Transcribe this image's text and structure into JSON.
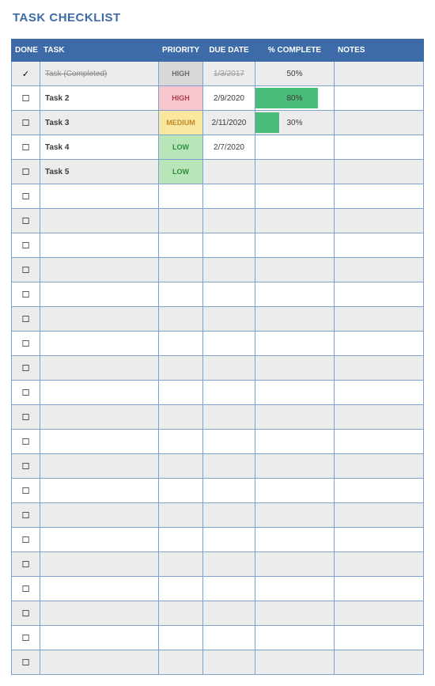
{
  "title": "TASK CHECKLIST",
  "columns": {
    "done": "DONE",
    "task": "TASK",
    "priority": "PRIORITY",
    "dueDate": "DUE DATE",
    "pctComplete": "% COMPLETE",
    "notes": "NOTES"
  },
  "priorityColors": {
    "HIGH": {
      "bg": "#f7c7cf",
      "fg": "#b23b4a"
    },
    "MEDIUM": {
      "bg": "#f9e7a0",
      "fg": "#c08a2a"
    },
    "LOW": {
      "bg": "#b8e6b8",
      "fg": "#2f8a3f"
    }
  },
  "pctBarColor": "#4bbd7a",
  "rows": [
    {
      "done": "✓",
      "completed": true,
      "task": "Task (Completed)",
      "priority": "HIGH",
      "priorityNeutral": true,
      "dueDate": "1/3/2017",
      "pct": 50,
      "showBar": false,
      "notes": ""
    },
    {
      "done": "☐",
      "completed": false,
      "task": "Task 2",
      "priority": "HIGH",
      "priorityNeutral": false,
      "dueDate": "2/9/2020",
      "pct": 80,
      "showBar": true,
      "notes": ""
    },
    {
      "done": "☐",
      "completed": false,
      "task": "Task 3",
      "priority": "MEDIUM",
      "priorityNeutral": false,
      "dueDate": "2/11/2020",
      "pct": 30,
      "showBar": true,
      "notes": ""
    },
    {
      "done": "☐",
      "completed": false,
      "task": "Task 4",
      "priority": "LOW",
      "priorityNeutral": false,
      "dueDate": "2/7/2020",
      "pct": null,
      "showBar": false,
      "notes": ""
    },
    {
      "done": "☐",
      "completed": false,
      "task": "Task 5",
      "priority": "LOW",
      "priorityNeutral": false,
      "dueDate": "",
      "pct": null,
      "showBar": false,
      "notes": ""
    },
    {
      "done": "☐"
    },
    {
      "done": "☐"
    },
    {
      "done": "☐"
    },
    {
      "done": "☐"
    },
    {
      "done": "☐"
    },
    {
      "done": "☐"
    },
    {
      "done": "☐"
    },
    {
      "done": "☐"
    },
    {
      "done": "☐"
    },
    {
      "done": "☐"
    },
    {
      "done": "☐"
    },
    {
      "done": "☐"
    },
    {
      "done": "☐"
    },
    {
      "done": "☐"
    },
    {
      "done": "☐"
    },
    {
      "done": "☐"
    },
    {
      "done": "☐"
    },
    {
      "done": "☐"
    },
    {
      "done": "☐"
    },
    {
      "done": "☐"
    }
  ]
}
